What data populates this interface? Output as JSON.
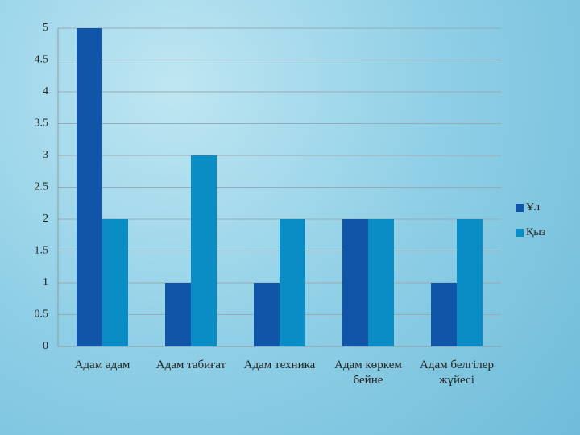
{
  "chart_data": {
    "type": "bar",
    "categories": [
      "Адам адам",
      "Адам табиғат",
      "Адам техника",
      "Адам көркем бейне",
      "Адам белгілер жүйесі"
    ],
    "series": [
      {
        "name": "Ұл",
        "color": "#1155a8",
        "values": [
          5,
          1,
          1,
          2,
          1
        ]
      },
      {
        "name": "Қыз",
        "color": "#0a8cc4",
        "values": [
          2,
          3,
          2,
          2,
          2
        ]
      }
    ],
    "ylim": [
      0,
      5
    ],
    "yticks": [
      0,
      0.5,
      1,
      1.5,
      2,
      2.5,
      3,
      3.5,
      4,
      4.5,
      5
    ],
    "grid": true,
    "legend": "right"
  }
}
